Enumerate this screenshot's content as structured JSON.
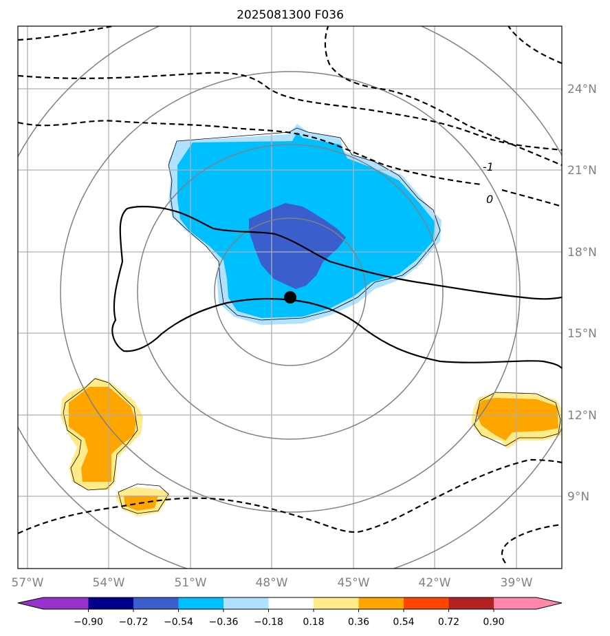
{
  "title": "2025081300 F036",
  "map": {
    "lon_ticks": [
      "57°W",
      "54°W",
      "51°W",
      "48°W",
      "45°W",
      "42°W",
      "39°W"
    ],
    "lat_ticks": [
      "24°N",
      "21°N",
      "18°N",
      "15°N",
      "12°N",
      "9°N"
    ],
    "storm_center": {
      "lon": "47.3°W",
      "lat": "16.3°N"
    },
    "contour_labels": [
      "-1",
      "0"
    ],
    "range_rings": 4
  },
  "colorbar": {
    "labels": [
      "−0.90",
      "−0.72",
      "−0.54",
      "−0.36",
      "−0.18",
      "0.18",
      "0.36",
      "0.54",
      "0.72",
      "0.90"
    ],
    "colors": [
      "#9932cc",
      "#00008b",
      "#3a5fcd",
      "#00bfff",
      "#b0e2ff",
      "#ffffff",
      "#ffeb8a",
      "#ffa500",
      "#ff4500",
      "#b22222",
      "#ff88aa"
    ]
  },
  "palette": {
    "light_blue": "#b0e2ff",
    "blue": "#00bfff",
    "dark_blue": "#3a5fcd",
    "light_yellow": "#ffeb8a",
    "orange": "#ffa500"
  }
}
